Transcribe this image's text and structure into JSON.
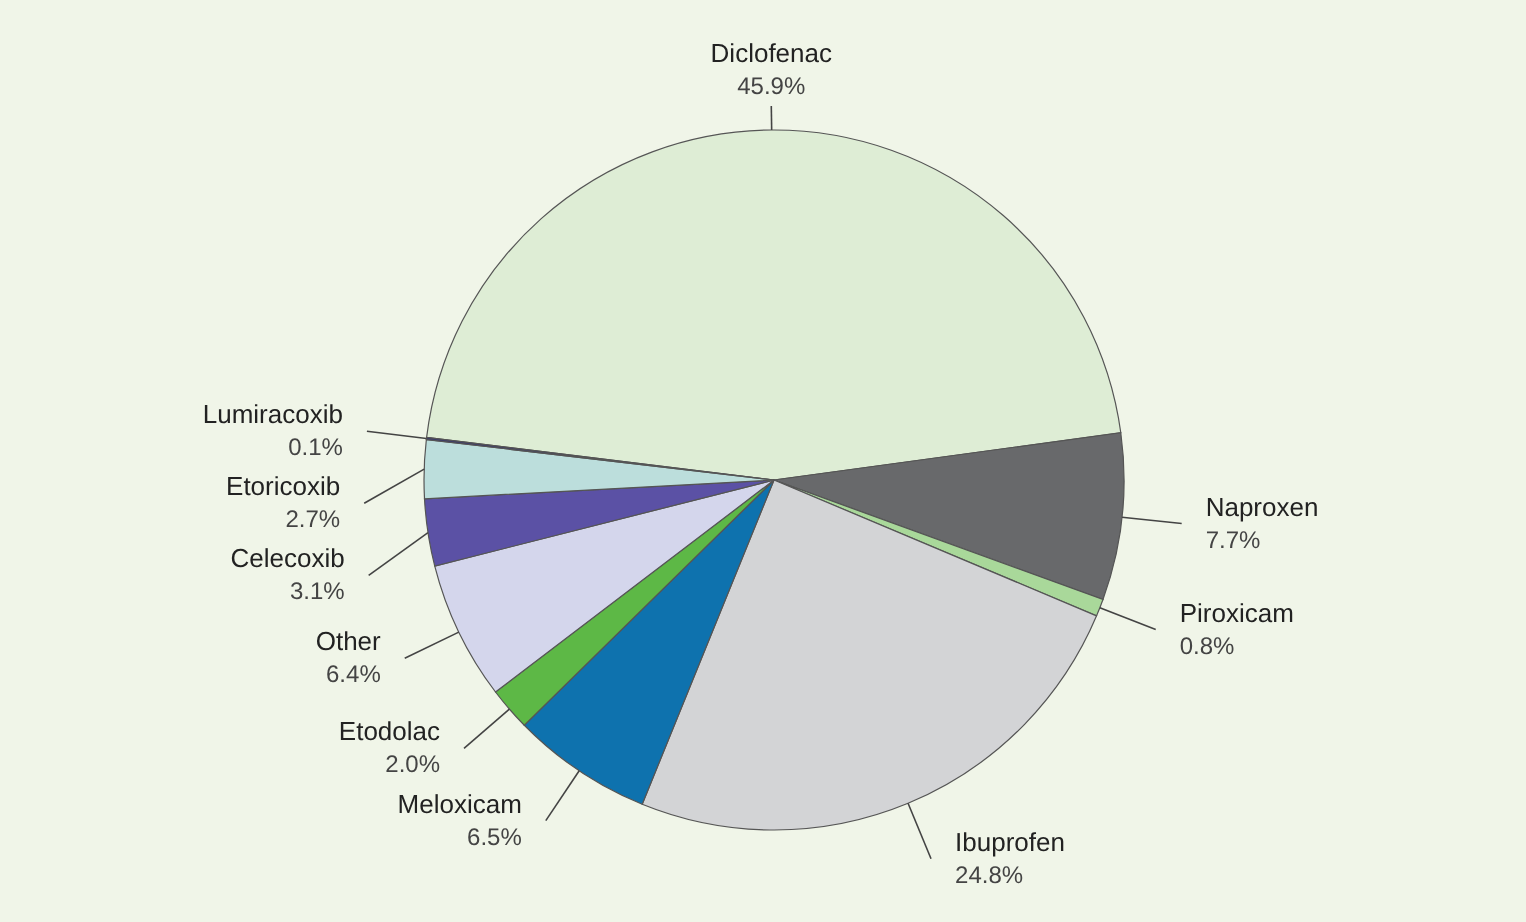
{
  "chart_data": {
    "type": "pie",
    "categories": [
      "Diclofenac",
      "Naproxen",
      "Piroxicam",
      "Ibuprofen",
      "Meloxicam",
      "Etodolac",
      "Other",
      "Celecoxib",
      "Etoricoxib",
      "Lumiracoxib"
    ],
    "values": [
      45.9,
      7.7,
      0.8,
      24.8,
      6.5,
      2.0,
      6.4,
      3.1,
      2.7,
      0.1
    ],
    "value_labels": [
      "45.9%",
      "7.7%",
      "0.8%",
      "24.8%",
      "6.5%",
      "2.0%",
      "6.4%",
      "3.1%",
      "2.7%",
      "0.1%"
    ],
    "colors": [
      "#deedd5",
      "#68696b",
      "#a9d89a",
      "#d3d4d6",
      "#0e72ae",
      "#5db846",
      "#d4d6ec",
      "#5b51a5",
      "#bcdedc",
      "#3a3a6a"
    ]
  }
}
